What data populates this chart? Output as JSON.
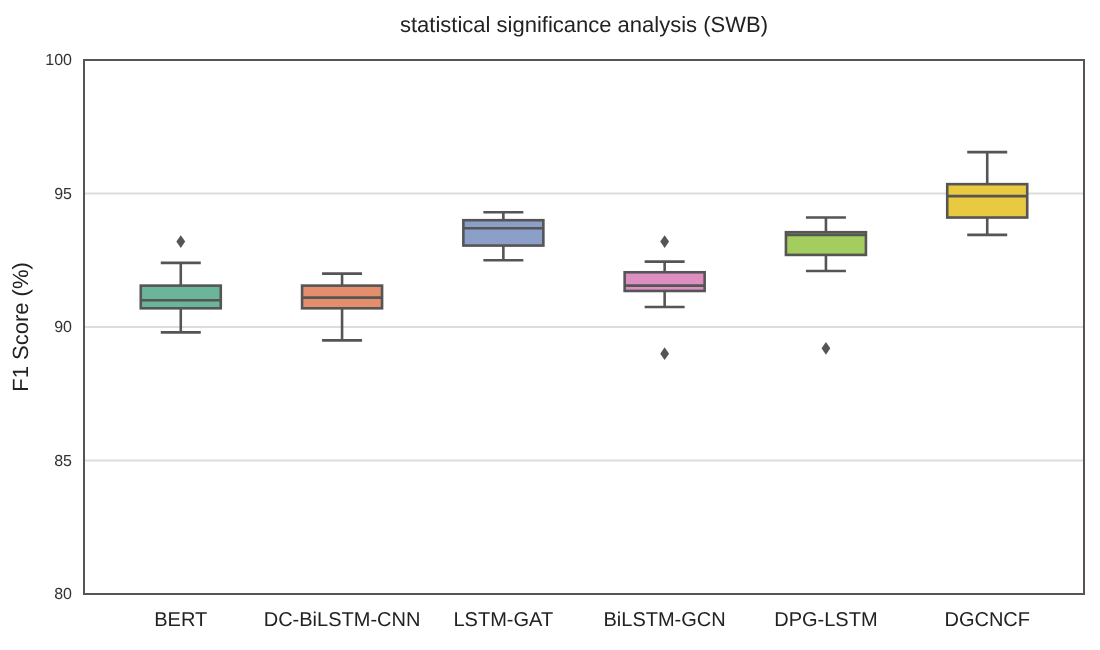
{
  "chart_data": {
    "type": "box",
    "title": "statistical significance analysis (SWB)",
    "ylabel": "F1 Score (%)",
    "categories": [
      "BERT",
      "DC-BiLSTM-CNN",
      "LSTM-GAT",
      "BiLSTM-GCN",
      "DPG-LSTM",
      "DGCNCF"
    ],
    "colors": [
      "#6bb59b",
      "#e58e6d",
      "#8c9fc8",
      "#dc8fc0",
      "#a3cd5e",
      "#e8c940"
    ],
    "boxes": [
      {
        "low": 89.8,
        "q1": 90.7,
        "median": 91.0,
        "q3": 91.55,
        "high": 92.4,
        "outliers": [
          93.2
        ]
      },
      {
        "low": 89.5,
        "q1": 90.7,
        "median": 91.1,
        "q3": 91.55,
        "high": 92.0
      },
      {
        "low": 92.5,
        "q1": 93.05,
        "median": 93.7,
        "q3": 94.0,
        "high": 94.3
      },
      {
        "low": 90.75,
        "q1": 91.35,
        "median": 91.55,
        "q3": 92.05,
        "high": 92.45,
        "outliers": [
          93.2,
          89.0
        ]
      },
      {
        "low": 92.1,
        "q1": 92.7,
        "median": 93.45,
        "q3": 93.55,
        "high": 94.1,
        "outliers": [
          89.2
        ]
      },
      {
        "low": 93.45,
        "q1": 94.1,
        "median": 94.9,
        "q3": 95.35,
        "high": 96.55
      }
    ],
    "ylim": [
      80,
      100
    ],
    "yticks": [
      80,
      85,
      90,
      95,
      100
    ],
    "grid": "y"
  }
}
